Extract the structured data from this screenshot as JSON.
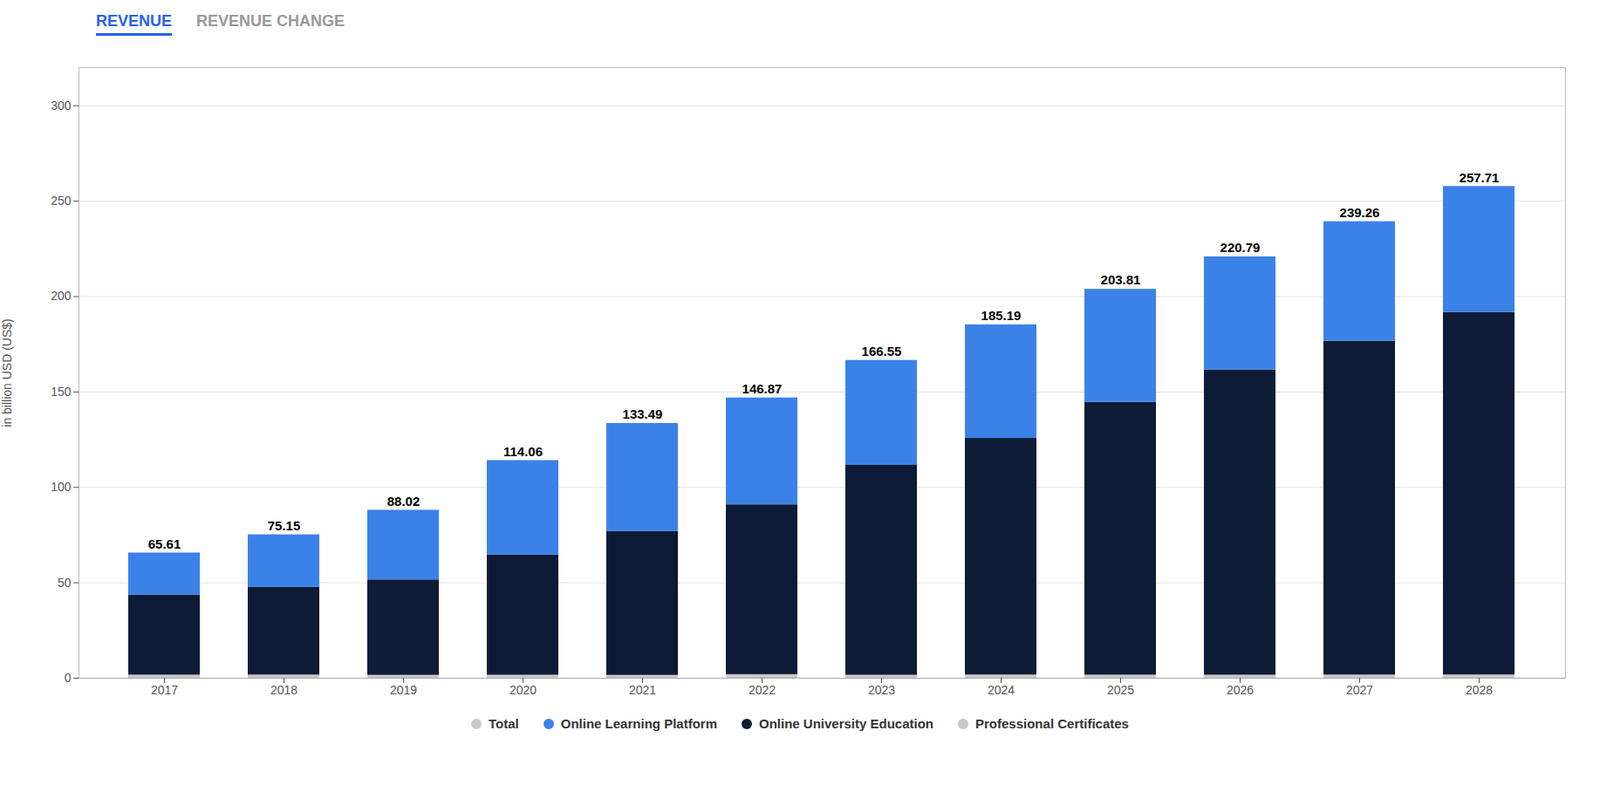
{
  "chart_data": {
    "type": "bar",
    "title": "REVENUE",
    "subtitle": "REVENUE CHANGE",
    "categories": [
      "2017",
      "2018",
      "2019",
      "2020",
      "2021",
      "2022",
      "2023",
      "2024",
      "2025",
      "2026",
      "2027",
      "2028"
    ],
    "series": [
      {
        "name": "Total",
        "color": "#c8c8c8",
        "type": "text",
        "values": [
          65.61,
          75.15,
          88.02,
          114.06,
          133.49,
          146.87,
          166.55,
          185.19,
          203.81,
          220.79,
          239.26,
          257.71
        ]
      },
      {
        "name": "Online Learning Platform",
        "color": "#3b82e8",
        "values": [
          22.0,
          27.5,
          36.5,
          49.5,
          56.5,
          56.0,
          55.0,
          59.5,
          59.2,
          59.2,
          62.6,
          66.0
        ]
      },
      {
        "name": "Online University Education",
        "color": "#0d1b36",
        "values": [
          42.0,
          46.0,
          50.0,
          63.0,
          75.5,
          89.0,
          110.0,
          124.0,
          143.0,
          160.0,
          175.0,
          190.0
        ]
      },
      {
        "name": "Professional Certificates",
        "color": "#c8c8c8",
        "values": [
          1.61,
          1.65,
          1.52,
          1.56,
          1.49,
          1.87,
          1.55,
          1.69,
          1.61,
          1.59,
          1.66,
          1.71
        ]
      }
    ],
    "stacked": true,
    "ylabel": "in billion USD (US$)",
    "ylim": [
      0,
      320
    ],
    "yticks": [
      0,
      50,
      100,
      150,
      200,
      250,
      300
    ],
    "grid": true,
    "legend": "bottom"
  }
}
